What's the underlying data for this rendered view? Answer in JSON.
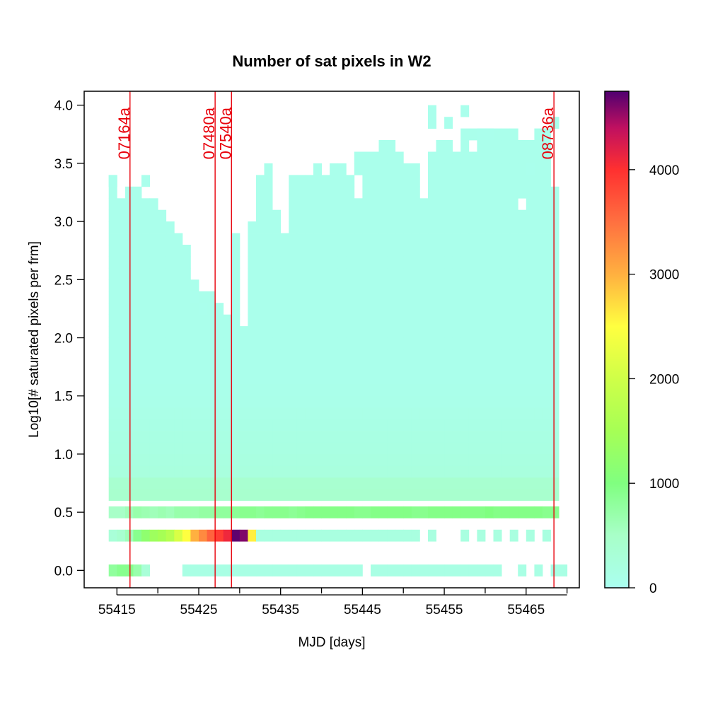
{
  "chart_data": {
    "type": "heatmap",
    "title": "Number of sat pixels in W2",
    "xlabel": "MJD [days]",
    "ylabel": "Log10[# saturated pixels per frm]",
    "xlim": [
      55411.0,
      55471.5
    ],
    "ylim": [
      -0.15,
      4.12
    ],
    "x_ticks": [
      55415,
      55425,
      55435,
      55445,
      55455,
      55465
    ],
    "x_minor_ticks": [
      55420,
      55430,
      55440,
      55450,
      55460,
      55470
    ],
    "y_ticks": [
      0.0,
      0.5,
      1.0,
      1.5,
      2.0,
      2.5,
      3.0,
      3.5,
      4.0
    ],
    "x_tick_labels": [
      "55415",
      "55425",
      "55435",
      "55445",
      "55455",
      "55465"
    ],
    "y_tick_labels": [
      "0.0",
      "0.5",
      "1.0",
      "1.5",
      "2.0",
      "2.5",
      "3.0",
      "3.5",
      "4.0"
    ],
    "cell_width_days": 1.0,
    "cell_height_log": 0.1,
    "x_start": 55414.5,
    "n_columns": 55,
    "band_top": 0.6,
    "colorbar": {
      "ticks": [
        0,
        1000,
        2000,
        3000,
        4000
      ],
      "tick_labels": [
        "0",
        "1000",
        "2000",
        "3000",
        "4000"
      ],
      "max": 4750,
      "stops": [
        {
          "v": 0,
          "c": "#aafff0"
        },
        {
          "v": 500,
          "c": "#a8ffc8"
        },
        {
          "v": 1000,
          "c": "#80ff80"
        },
        {
          "v": 1500,
          "c": "#a6ff55"
        },
        {
          "v": 2000,
          "c": "#cfff48"
        },
        {
          "v": 2500,
          "c": "#ffff40"
        },
        {
          "v": 3000,
          "c": "#ffb040"
        },
        {
          "v": 3500,
          "c": "#ff7040"
        },
        {
          "v": 4000,
          "c": "#ff3030"
        },
        {
          "v": 4400,
          "c": "#c01060"
        },
        {
          "v": 4750,
          "c": "#500070"
        }
      ]
    },
    "column_tops": [
      3.35,
      3.15,
      3.25,
      3.25,
      3.15,
      3.15,
      3.05,
      2.95,
      2.85,
      2.75,
      2.45,
      2.35,
      2.35,
      2.25,
      2.15,
      2.85,
      2.05,
      2.95,
      3.35,
      3.45,
      3.05,
      2.95,
      3.35,
      3.35,
      3.35,
      3.45,
      3.45,
      3.45,
      3.45,
      3.45,
      3.55,
      3.55,
      3.55,
      3.65,
      3.65,
      3.55,
      3.45,
      3.45,
      3.15,
      3.55,
      3.65,
      3.65,
      3.55,
      3.75,
      3.75,
      3.75,
      3.75,
      3.75,
      3.75,
      3.75,
      3.65,
      3.65,
      3.75,
      3.75,
      3.25
    ],
    "isolated_cells": [
      {
        "x": 55414.5,
        "y": 3.35
      },
      {
        "x": 55418.5,
        "y": 3.35
      },
      {
        "x": 55424.5,
        "y": 2.35
      },
      {
        "x": 55425.5,
        "y": 2.25
      },
      {
        "x": 55453.5,
        "y": 3.85
      },
      {
        "x": 55455.5,
        "y": 3.85
      },
      {
        "x": 55457.5,
        "y": 3.95
      },
      {
        "x": 55459.5,
        "y": 3.75
      },
      {
        "x": 55460.5,
        "y": 3.75
      },
      {
        "x": 55465.5,
        "y": 3.45
      },
      {
        "x": 55467.5,
        "y": 3.75
      },
      {
        "x": 55468.5,
        "y": 3.85
      },
      {
        "x": 55453.5,
        "y": 3.95
      }
    ],
    "holes": [
      {
        "x": 55435.5,
        "y": 2.95
      },
      {
        "x": 55440.5,
        "y": 3.45
      },
      {
        "x": 55443.5,
        "y": 3.45
      },
      {
        "x": 55444.5,
        "y": 3.35
      },
      {
        "x": 55444.5,
        "y": 3.25
      },
      {
        "x": 55452.5,
        "y": 3.55
      },
      {
        "x": 55464.5,
        "y": 3.15
      },
      {
        "x": 55458.5,
        "y": 3.65
      }
    ],
    "band_0_5_counts": [
      500,
      500,
      600,
      700,
      650,
      600,
      650,
      600,
      700,
      700,
      700,
      750,
      750,
      800,
      800,
      850,
      900,
      900,
      850,
      900,
      900,
      900,
      850,
      900,
      950,
      950,
      950,
      950,
      950,
      950,
      900,
      900,
      950,
      950,
      950,
      950,
      950,
      900,
      900,
      950,
      950,
      950,
      950,
      950,
      950,
      950,
      1000,
      950,
      950,
      950,
      950,
      950,
      950,
      900,
      900
    ],
    "band_0_3_counts": [
      300,
      400,
      600,
      900,
      1200,
      1400,
      1500,
      1700,
      2100,
      2500,
      3000,
      3300,
      3600,
      3900,
      4100,
      4700,
      4600,
      2600,
      200,
      200,
      200,
      200,
      200,
      200,
      200,
      200,
      200,
      200,
      200,
      200,
      200,
      200,
      200,
      200,
      200,
      200,
      200,
      200,
      200,
      200,
      200,
      200,
      200,
      200,
      200,
      200,
      200,
      200,
      200,
      200,
      200,
      200,
      200,
      200,
      200
    ],
    "band_0_3_gaps": [
      55452.5,
      55454.5,
      55455.5,
      55456.5,
      55458.5,
      55460.5,
      55462.5,
      55464.5,
      55466.5,
      55468.5
    ],
    "band_0_0_present": [
      55414.5,
      55415.5,
      55416.5,
      55417.5,
      55418.5,
      55423.5,
      55424.5,
      55425.5,
      55426.5,
      55427.5,
      55428.5,
      55429.5,
      55430.5,
      55431.5,
      55432.5,
      55433.5,
      55434.5,
      55435.5,
      55436.5,
      55437.5,
      55438.5,
      55439.5,
      55440.5,
      55441.5,
      55442.5,
      55443.5,
      55444.5,
      55446.5,
      55447.5,
      55448.5,
      55449.5,
      55450.5,
      55451.5,
      55452.5,
      55453.5,
      55454.5,
      55455.5,
      55456.5,
      55457.5,
      55458.5,
      55459.5,
      55460.5,
      55461.5,
      55464.5,
      55466.5,
      55468.5,
      55469.5
    ],
    "band_0_0_counts_first": [
      800,
      900,
      900,
      700,
      300
    ],
    "events": [
      {
        "label": "07164a",
        "mjd": 55416.6
      },
      {
        "label": "07480a",
        "mjd": 55427.0
      },
      {
        "label": "07540a",
        "mjd": 55429.0
      },
      {
        "label": "08736a",
        "mjd": 55468.4
      }
    ]
  }
}
